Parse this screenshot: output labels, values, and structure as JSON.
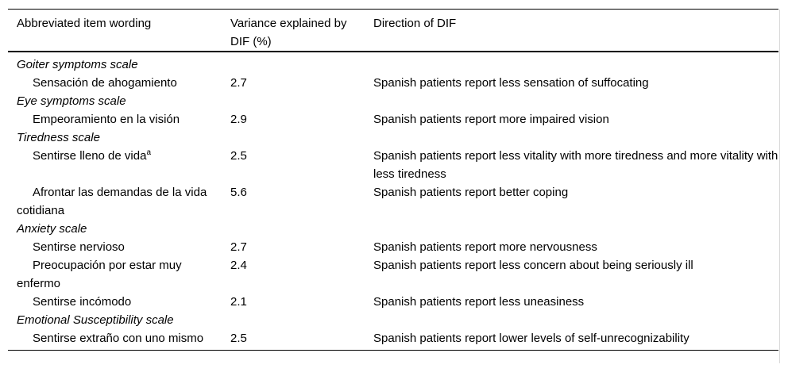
{
  "table": {
    "columns": [
      "Abbreviated item wording",
      "Variance explained by DIF (%)",
      "Direction of DIF"
    ],
    "rows": [
      {
        "type": "scale",
        "item": "Goiter symptoms scale",
        "variance": "",
        "direction": ""
      },
      {
        "type": "item",
        "item": "Sensación de ahogamiento",
        "variance": "2.7",
        "direction": "Spanish patients report less sensation of suffocating"
      },
      {
        "type": "scale",
        "item": "Eye symptoms scale",
        "variance": "",
        "direction": ""
      },
      {
        "type": "item",
        "item": "Empeoramiento en la visión",
        "variance": "2.9",
        "direction": "Spanish patients report more impaired vision"
      },
      {
        "type": "scale",
        "item": "Tiredness scale",
        "variance": "",
        "direction": ""
      },
      {
        "type": "item",
        "item": "Sentirse lleno de vida",
        "sup": "a",
        "variance": "2.5",
        "direction": "Spanish patients report less vitality with more tiredness and more vitality with less tiredness"
      },
      {
        "type": "item",
        "item": "Afrontar las demandas de la vida cotidiana",
        "variance": "5.6",
        "direction": "Spanish patients report better coping"
      },
      {
        "type": "scale",
        "item": "Anxiety scale",
        "variance": "",
        "direction": ""
      },
      {
        "type": "item",
        "item": "Sentirse nervioso",
        "variance": "2.7",
        "direction": "Spanish patients report more nervousness"
      },
      {
        "type": "item",
        "item": "Preocupación por estar muy enfermo",
        "variance": "2.4",
        "direction": "Spanish patients report less concern about being seriously ill"
      },
      {
        "type": "item",
        "item": "Sentirse incómodo",
        "variance": "2.1",
        "direction": "Spanish patients report less uneasiness"
      },
      {
        "type": "scale",
        "item": "Emotional Susceptibility scale",
        "variance": "",
        "direction": ""
      },
      {
        "type": "item",
        "item": "Sentirse extraño con uno mismo",
        "variance": "2.5",
        "direction": "Spanish patients report lower levels of self-unrecognizability"
      }
    ]
  }
}
